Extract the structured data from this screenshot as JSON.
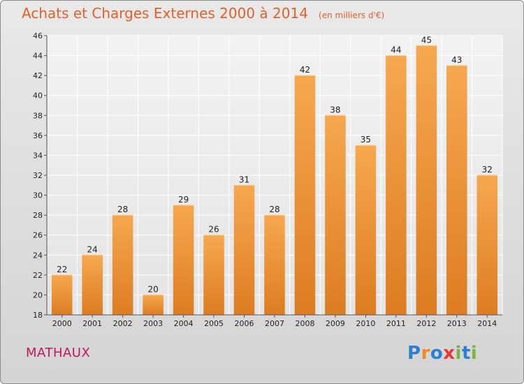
{
  "title": "Achats et Charges Externes 2000 à 2014",
  "subtitle": "(en milliers d'€)",
  "place": "MATHAUX",
  "logo": {
    "text": "Proxiti",
    "colors": [
      "#2e7fd1",
      "#f08a1c",
      "#2e7fd1",
      "#e53935",
      "#7cb342",
      "#2e7fd1",
      "#7cb342"
    ]
  },
  "colors": {
    "bar_top": "#f6a84f",
    "bar_bottom": "#dd7c22",
    "title": "#e0602a",
    "place": "#c2185b"
  },
  "chart_data": {
    "type": "bar",
    "categories": [
      "2000",
      "2001",
      "2002",
      "2003",
      "2004",
      "2005",
      "2006",
      "2007",
      "2008",
      "2009",
      "2010",
      "2011",
      "2012",
      "2013",
      "2014"
    ],
    "values": [
      22,
      24,
      28,
      20,
      29,
      26,
      31,
      28,
      42,
      38,
      35,
      44,
      45,
      43,
      32
    ],
    "title": "Achats et Charges Externes 2000 à 2014",
    "xlabel": "",
    "ylabel": "",
    "ylim": [
      18,
      46
    ],
    "yticks": [
      18,
      20,
      22,
      24,
      26,
      28,
      30,
      32,
      34,
      36,
      38,
      40,
      42,
      44,
      46
    ],
    "grid": true,
    "show_values": true
  }
}
